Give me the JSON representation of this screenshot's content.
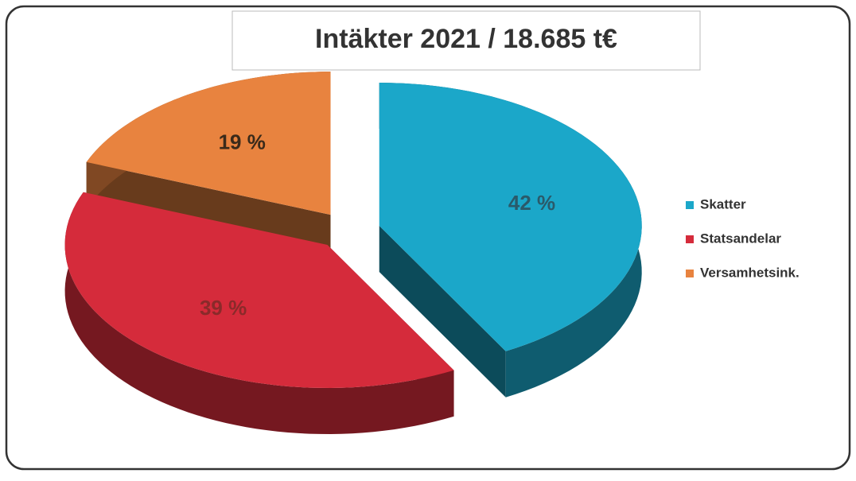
{
  "chart_data": {
    "type": "pie",
    "title": "Intäkter 2021 / 18.685 t€",
    "categories": [
      "Skatter",
      "Statsandelar",
      "Versamhetsink."
    ],
    "values": [
      42,
      39,
      19
    ],
    "value_labels": [
      "42 %",
      "39 %",
      "19 %"
    ],
    "colors": [
      "#1ba7c9",
      "#d52b3b",
      "#e8833f"
    ],
    "legend": "right"
  }
}
